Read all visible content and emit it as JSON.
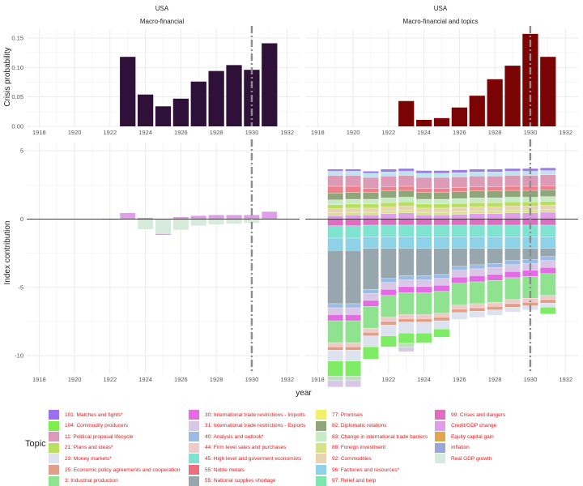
{
  "figure": {
    "xlabel": "year",
    "ylabel_top": "Crisis probability",
    "ylabel_bottom": "Index contribution"
  },
  "chart_data": [
    {
      "type": "bar",
      "panel": "top-left",
      "title": "USA",
      "subtitle": "Macro-financial",
      "xlim": [
        1917.3,
        1932.7
      ],
      "ylim": [
        0,
        0.165
      ],
      "xticks": [
        1918,
        1920,
        1922,
        1924,
        1926,
        1928,
        1930,
        1932
      ],
      "yticks": [
        0.0,
        0.05,
        0.1,
        0.15
      ],
      "ytick_labels": [
        "0.00",
        "0.05",
        "0.10",
        "0.15"
      ],
      "vline": 1930,
      "color": "#2e1038",
      "x": [
        1923,
        1924,
        1925,
        1926,
        1927,
        1928,
        1929,
        1930,
        1931
      ],
      "values": [
        0.118,
        0.054,
        0.034,
        0.047,
        0.076,
        0.094,
        0.104,
        0.096,
        0.141
      ],
      "grid": true
    },
    {
      "type": "bar",
      "panel": "top-right",
      "title": "USA",
      "subtitle": "Macro-financial and topics",
      "xlim": [
        1917.3,
        1932.7
      ],
      "ylim": [
        0,
        0.165
      ],
      "xticks": [
        1918,
        1920,
        1922,
        1924,
        1926,
        1928,
        1930,
        1932
      ],
      "vline": 1930,
      "color": "#7a0403",
      "x": [
        1923,
        1924,
        1925,
        1926,
        1927,
        1928,
        1929,
        1930,
        1931
      ],
      "values": [
        0.043,
        0.011,
        0.014,
        0.032,
        0.052,
        0.08,
        0.103,
        0.157,
        0.118
      ],
      "grid": true
    },
    {
      "type": "bar",
      "stacked": true,
      "panel": "bottom-left",
      "xlim": [
        1917.3,
        1932.7
      ],
      "ylim": [
        -11.3,
        5.6
      ],
      "xticks": [
        1918,
        1920,
        1922,
        1924,
        1926,
        1928,
        1930,
        1932
      ],
      "yticks": [
        5,
        0,
        -5,
        -10
      ],
      "vline": 1930,
      "hline": 0,
      "series": [
        {
          "name": "Inflation",
          "color": "#9aa5dc",
          "x": [
            1922,
            1923,
            1924,
            1925,
            1926,
            1927,
            1928,
            1929,
            1930,
            1931
          ],
          "values": [
            -0.05,
            0.0,
            0.0,
            -0.02,
            0.0,
            0.0,
            0.0,
            0.0,
            0.0,
            0.0
          ]
        },
        {
          "name": "Real GDP growth",
          "color": "#d6ebdc",
          "x": [
            1922,
            1923,
            1924,
            1925,
            1926,
            1927,
            1928,
            1929,
            1930,
            1931
          ],
          "values": [
            0.0,
            0.0,
            -0.75,
            -1.05,
            -0.8,
            -0.5,
            -0.4,
            -0.35,
            -0.3,
            0.0
          ]
        },
        {
          "name": "Credit/GDP change",
          "color": "#de9ee8",
          "x": [
            1922,
            1923,
            1924,
            1925,
            1926,
            1927,
            1928,
            1929,
            1930,
            1931
          ],
          "values": [
            0.0,
            0.45,
            0.1,
            -0.1,
            0.15,
            0.25,
            0.3,
            0.3,
            0.3,
            0.55
          ]
        }
      ]
    },
    {
      "type": "bar",
      "stacked": true,
      "panel": "bottom-right",
      "xlim": [
        1917.3,
        1932.7
      ],
      "ylim": [
        -11.3,
        5.6
      ],
      "xticks": [
        1918,
        1920,
        1922,
        1924,
        1926,
        1928,
        1930,
        1932
      ],
      "vline": 1930,
      "hline": 0,
      "x": [
        1919,
        1920,
        1921,
        1922,
        1923,
        1924,
        1925,
        1926,
        1927,
        1928,
        1929,
        1930,
        1931
      ],
      "positive_series": [
        {
          "name": "Credit/GDP change",
          "color": "#de9ee8",
          "values": [
            0.25,
            0.3,
            0.3,
            0.4,
            0.45,
            0.3,
            0.3,
            0.35,
            0.4,
            0.4,
            0.45,
            0.45,
            0.5
          ]
        },
        {
          "name": "88: Foreign investment",
          "color": "#d6e38c",
          "values": [
            0.2,
            0.2,
            0.2,
            0.2,
            0.2,
            0.2,
            0.2,
            0.2,
            0.2,
            0.2,
            0.2,
            0.2,
            0.2
          ]
        },
        {
          "name": "92: Commodities",
          "color": "#e8d3b0",
          "values": [
            0.3,
            0.3,
            0.3,
            0.3,
            0.3,
            0.3,
            0.3,
            0.3,
            0.3,
            0.3,
            0.3,
            0.3,
            0.3
          ]
        },
        {
          "name": "21: Plans and ideas*",
          "color": "#b9df5e",
          "values": [
            0.3,
            0.3,
            0.3,
            0.3,
            0.3,
            0.3,
            0.3,
            0.3,
            0.3,
            0.3,
            0.3,
            0.3,
            0.3
          ]
        },
        {
          "name": "83: Change in international trade barriers",
          "color": "#c7ecc3",
          "values": [
            0.35,
            0.35,
            0.35,
            0.35,
            0.35,
            0.35,
            0.35,
            0.35,
            0.35,
            0.35,
            0.35,
            0.35,
            0.35
          ]
        },
        {
          "name": "82: Diplomatic relations",
          "color": "#8fa57a",
          "values": [
            0.5,
            0.5,
            0.5,
            0.5,
            0.5,
            0.5,
            0.5,
            0.5,
            0.5,
            0.5,
            0.5,
            0.5,
            0.5
          ]
        },
        {
          "name": "55: Noble metals",
          "color": "#f07f8c",
          "values": [
            0.5,
            0.45,
            0.3,
            0.3,
            0.3,
            0.3,
            0.3,
            0.3,
            0.3,
            0.3,
            0.3,
            0.3,
            0.3
          ]
        },
        {
          "name": "11: Political proposal lifecycle",
          "color": "#dd9ab7",
          "values": [
            0.8,
            0.8,
            0.8,
            0.8,
            0.8,
            0.8,
            0.8,
            0.8,
            0.8,
            0.8,
            0.8,
            0.8,
            0.8
          ]
        },
        {
          "name": "96: Factories and resources*",
          "color": "#bfe2f0",
          "values": [
            0.3,
            0.3,
            0.3,
            0.3,
            0.3,
            0.3,
            0.3,
            0.3,
            0.3,
            0.3,
            0.3,
            0.3,
            0.3
          ]
        },
        {
          "name": "101: Matches and fights*",
          "color": "#9a7de6",
          "values": [
            0.15,
            0.15,
            0.15,
            0.2,
            0.2,
            0.2,
            0.2,
            0.2,
            0.2,
            0.2,
            0.2,
            0.2,
            0.2
          ]
        }
      ],
      "negative_series": [
        {
          "name": "99: Crises and dangers",
          "color": "#e06cc4",
          "values": [
            -0.5,
            -0.5,
            -0.45,
            -0.45,
            -0.45,
            -0.45,
            -0.45,
            -0.45,
            -0.45,
            -0.45,
            -0.45,
            -0.45,
            -0.45
          ]
        },
        {
          "name": "45: High level and goverment economists",
          "color": "#7fe4cf",
          "values": [
            -0.9,
            -0.9,
            -0.85,
            -0.85,
            -0.85,
            -0.85,
            -0.85,
            -0.85,
            -0.85,
            -0.85,
            -0.85,
            -0.85,
            -0.85
          ]
        },
        {
          "name": "96: Factories and resources*",
          "color": "#8ed2e8",
          "values": [
            -0.9,
            -0.9,
            -0.85,
            -0.85,
            -0.85,
            -0.85,
            -0.85,
            -0.85,
            -0.85,
            -0.85,
            -0.85,
            -0.85,
            -0.85
          ]
        },
        {
          "name": "55: National supplies shortage",
          "color": "#98a6ad",
          "values": [
            -3.9,
            -3.9,
            -3.0,
            -2.2,
            -2.0,
            -2.0,
            -1.9,
            -1.3,
            -1.2,
            -1.1,
            -0.9,
            -0.8,
            -0.6
          ]
        },
        {
          "name": "40: Analysis and outlook*",
          "color": "#9abce6",
          "values": [
            -0.3,
            -0.3,
            -0.3,
            -0.3,
            -0.3,
            -0.3,
            -0.3,
            -0.3,
            -0.3,
            -0.3,
            -0.3,
            -0.3,
            -0.3
          ]
        },
        {
          "name": "31: International trade restrictions - Exports",
          "color": "#d9c7e8",
          "values": [
            -0.5,
            -0.5,
            -0.5,
            -0.5,
            -0.5,
            -0.5,
            -0.5,
            -0.5,
            -0.5,
            -0.5,
            -0.5,
            -0.5,
            -0.5
          ]
        },
        {
          "name": "30: International trade restrictions - Imports",
          "color": "#e46ae6",
          "values": [
            -0.45,
            -0.45,
            -0.45,
            -0.45,
            -0.45,
            -0.45,
            -0.45,
            -0.45,
            -0.45,
            -0.45,
            -0.45,
            -0.45,
            -0.45
          ]
        },
        {
          "name": "3: Industrial production",
          "color": "#8fe28f",
          "values": [
            -1.6,
            -1.6,
            -1.6,
            -1.6,
            -1.6,
            -1.6,
            -1.6,
            -1.6,
            -1.6,
            -1.6,
            -1.6,
            -1.6,
            -1.6
          ]
        },
        {
          "name": "44: Firm level sales and purchases",
          "color": "#f0c9c9",
          "values": [
            -0.3,
            -0.3,
            -0.3,
            -0.3,
            -0.3,
            -0.3,
            -0.3,
            -0.3,
            -0.3,
            -0.3,
            -0.3,
            -0.3,
            -0.3
          ]
        },
        {
          "name": "25: Economic policy agreements and cooperation",
          "color": "#e09f86",
          "values": [
            -0.25,
            -0.25,
            -0.25,
            -0.25,
            -0.25,
            -0.25,
            -0.25,
            -0.25,
            -0.25,
            -0.25,
            -0.25,
            -0.25,
            -0.25
          ]
        },
        {
          "name": "23: Money markets*",
          "color": "#dde2ee",
          "values": [
            -0.8,
            -0.8,
            -0.8,
            -0.8,
            -0.8,
            -0.8,
            -0.6,
            -0.5,
            -0.45,
            -0.4,
            -0.35,
            -0.3,
            -0.3
          ]
        },
        {
          "name": "104: Commodity producers",
          "color": "#7fec66",
          "values": [
            -1.1,
            -1.1,
            -0.9,
            -0.8,
            -0.75,
            -0.7,
            -0.6,
            -0.0,
            0.0,
            0.0,
            0.0,
            0.0,
            -0.5
          ]
        },
        {
          "name": "3: Industrial production",
          "color": "#bbe0bb",
          "values": [
            -0.3,
            -0.3,
            -0.0,
            0.0,
            -0.3,
            0.0,
            0.0,
            0.0,
            0.0,
            0.0,
            0.0,
            0.0,
            0.0
          ]
        },
        {
          "name": "31: International trade restrictions - Exports",
          "color": "#d9c7e8",
          "values": [
            -0.5,
            -0.5,
            0.0,
            0.0,
            -0.3,
            0.0,
            0.0,
            0.0,
            0.0,
            0.0,
            0.0,
            0.0,
            0.0
          ]
        }
      ]
    }
  ],
  "legend": {
    "title": "Topic",
    "items": [
      {
        "label": "101: Matches and fights*",
        "color": "#9a6ff0"
      },
      {
        "label": "104: Commodity producers",
        "color": "#7fec50"
      },
      {
        "label": "11: Political proposal lifecycle",
        "color": "#dd9ab7"
      },
      {
        "label": "21: Plans and ideas*",
        "color": "#b9df5e"
      },
      {
        "label": "23: Money markets*",
        "color": "#dde2ee"
      },
      {
        "label": "25: Economic policy agreements and cooperation",
        "color": "#e09f86"
      },
      {
        "label": "3: Industrial production",
        "color": "#8fe28f"
      },
      {
        "label": "30: International trade restrictions - Imports",
        "color": "#e46ae6"
      },
      {
        "label": "31: International trade restrictions - Exports",
        "color": "#d9c7e8"
      },
      {
        "label": "40: Analysis and outlook*",
        "color": "#9abce6"
      },
      {
        "label": "44: Firm level sales and purchases",
        "color": "#f0c9c9"
      },
      {
        "label": "45: High level and goverment economists",
        "color": "#7fe4cf"
      },
      {
        "label": "55: Noble metals",
        "color": "#ec6d7d"
      },
      {
        "label": "55: National supplies shortage",
        "color": "#98a6ad"
      },
      {
        "label": "77: Promises",
        "color": "#f3ef6a"
      },
      {
        "label": "82: Diplomatic relations",
        "color": "#8fa57a"
      },
      {
        "label": "83: Change in international trade barriers",
        "color": "#c7ecc3"
      },
      {
        "label": "88: Foreign investment",
        "color": "#d6e38c"
      },
      {
        "label": "92: Commodities",
        "color": "#e8d3b0"
      },
      {
        "label": "96: Factories and resources*",
        "color": "#8ed2e8"
      },
      {
        "label": "97: Relief and help",
        "color": "#7fe4ad"
      },
      {
        "label": "99: Crises and dangers",
        "color": "#e06cc4"
      },
      {
        "label": "Credit/GDP change",
        "color": "#de9ee8"
      },
      {
        "label": "Equity capital gain",
        "color": "#e0a64c"
      },
      {
        "label": "Inflation",
        "color": "#9aa5dc"
      },
      {
        "label": "Real GDP growth",
        "color": "#d6ebdc"
      }
    ]
  }
}
